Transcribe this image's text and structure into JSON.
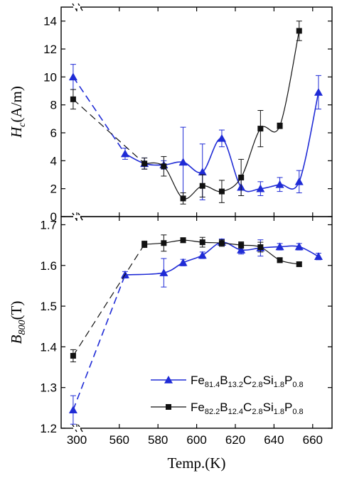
{
  "chart_data": [
    {
      "type": "line",
      "panel": "top",
      "ylabel": {
        "main": "H",
        "sub": "c",
        "unit": "(A/m)"
      },
      "ylim": [
        0,
        15
      ],
      "yticks": [
        "0",
        "2",
        "4",
        "6",
        "8",
        "10",
        "12",
        "14"
      ],
      "x_axis_break": true,
      "series": [
        {
          "marker": "triangle",
          "color": "#1f2bd6",
          "x": [
            297,
            563,
            573,
            583,
            593,
            603,
            613,
            623,
            633,
            643,
            653,
            663
          ],
          "y": [
            10.0,
            4.5,
            3.8,
            3.7,
            3.9,
            3.2,
            5.6,
            2.1,
            2.0,
            2.3,
            2.5,
            8.9
          ],
          "err": [
            0.9,
            0.4,
            0.4,
            0.3,
            2.5,
            2.0,
            0.6,
            0.6,
            0.5,
            0.5,
            0.8,
            1.2
          ]
        },
        {
          "marker": "square",
          "color": "#111111",
          "x": [
            297,
            573,
            583,
            593,
            603,
            613,
            623,
            633,
            643,
            653
          ],
          "y": [
            8.4,
            3.8,
            3.6,
            1.3,
            2.2,
            1.8,
            2.8,
            6.3,
            6.5,
            13.3
          ],
          "err": [
            0.7,
            0.4,
            0.7,
            0.4,
            0.8,
            0.8,
            1.3,
            1.3,
            0.2,
            0.7
          ]
        }
      ]
    },
    {
      "type": "line",
      "panel": "bottom",
      "ylabel": {
        "main": "B",
        "sub": "800",
        "unit": "(T)"
      },
      "ylim": [
        1.2,
        1.72
      ],
      "yticks": [
        "1.2",
        "1.3",
        "1.4",
        "1.5",
        "1.6",
        "1.7"
      ],
      "xlabel": "Temp.(K)",
      "xticks": [
        "300",
        "560",
        "580",
        "600",
        "620",
        "640",
        "660"
      ],
      "x_axis_break": true,
      "series": [
        {
          "marker": "triangle",
          "color": "#1f2bd6",
          "x": [
            297,
            563,
            583,
            593,
            603,
            613,
            623,
            633,
            643,
            653,
            663
          ],
          "y": [
            1.245,
            1.577,
            1.582,
            1.607,
            1.625,
            1.657,
            1.638,
            1.643,
            1.646,
            1.646,
            1.622
          ],
          "err": [
            0.035,
            0.008,
            0.035,
            0.008,
            0.008,
            0.008,
            0.01,
            0.02,
            0.008,
            0.008,
            0.008
          ]
        },
        {
          "marker": "square",
          "color": "#111111",
          "x": [
            297,
            573,
            583,
            593,
            603,
            613,
            623,
            633,
            643,
            653
          ],
          "y": [
            1.378,
            1.652,
            1.655,
            1.662,
            1.657,
            1.655,
            1.65,
            1.645,
            1.613,
            1.603
          ],
          "err": [
            0.015,
            0.008,
            0.02,
            0.006,
            0.012,
            0.008,
            0.008,
            0.012,
            0.006,
            0.005
          ]
        }
      ],
      "legend": {
        "placement": "bottom-right",
        "entries": [
          {
            "marker": "triangle",
            "color": "#1f2bd6",
            "parts": [
              [
                "Fe",
                ""
              ],
              [
                "81.4",
                "sub"
              ],
              [
                "B",
                ""
              ],
              [
                "13.2",
                "sub"
              ],
              [
                "C",
                ""
              ],
              [
                "2.8",
                "sub"
              ],
              [
                "Si",
                ""
              ],
              [
                "1.8",
                "sub"
              ],
              [
                "P",
                ""
              ],
              [
                "0.8",
                "sub"
              ]
            ]
          },
          {
            "marker": "square",
            "color": "#111111",
            "parts": [
              [
                "Fe",
                ""
              ],
              [
                "82.2",
                "sub"
              ],
              [
                "B",
                ""
              ],
              [
                "12.4",
                "sub"
              ],
              [
                "C",
                ""
              ],
              [
                "2.8",
                "sub"
              ],
              [
                "Si",
                ""
              ],
              [
                "1.8",
                "sub"
              ],
              [
                "P",
                ""
              ],
              [
                "0.8",
                "sub"
              ]
            ]
          }
        ]
      }
    }
  ]
}
